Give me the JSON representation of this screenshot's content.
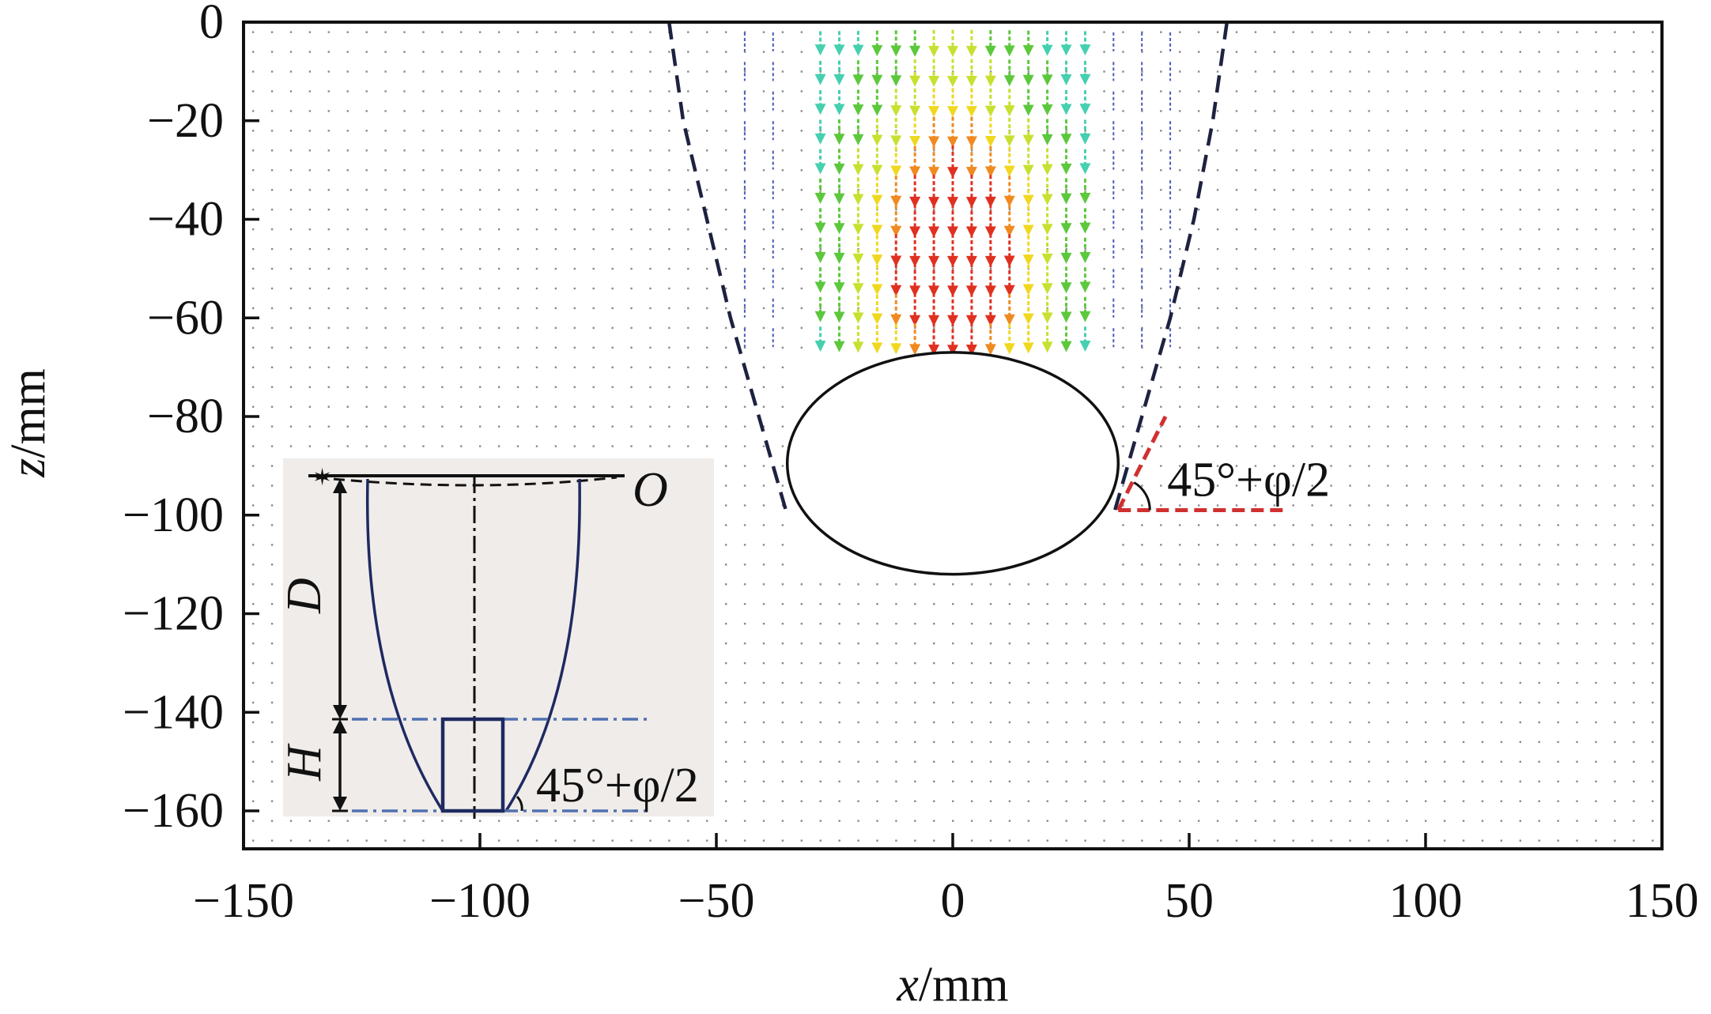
{
  "chart_data": {
    "type": "scatter",
    "subtype": "vector field (displacement arrows) with boundary curves",
    "xlabel_var": "x",
    "xlabel_unit": "/mm",
    "ylabel_var": "z",
    "ylabel_unit": "/mm",
    "xlim": [
      -150,
      150
    ],
    "ylim": [
      -168,
      0
    ],
    "x_ticks": [
      -150,
      -100,
      -50,
      0,
      50,
      100,
      150
    ],
    "x_tick_labels": [
      "−150",
      "−100",
      "−50",
      "0",
      "50",
      "100",
      "150"
    ],
    "y_ticks": [
      0,
      -20,
      -40,
      -60,
      -80,
      -100,
      -120,
      -140,
      -160
    ],
    "y_tick_labels": [
      "0",
      "−20",
      "−40",
      "−60",
      "−80",
      "−100",
      "−120",
      "−140",
      "−160"
    ],
    "grid": false,
    "structure": {
      "shape": "rounded rectangle",
      "x_range": [
        -35,
        35
      ],
      "z_range": [
        -112,
        -67
      ],
      "corner_radius_mm": 11
    },
    "boundary_curves": [
      {
        "style": "dashed",
        "color": "#1e2240",
        "points": [
          [
            -60,
            0
          ],
          [
            -57,
            -20
          ],
          [
            -52,
            -40
          ],
          [
            -47,
            -60
          ],
          [
            -41,
            -80
          ],
          [
            -35,
            -100
          ]
        ]
      },
      {
        "style": "dashed",
        "color": "#1e2240",
        "points": [
          [
            58,
            0
          ],
          [
            55,
            -20
          ],
          [
            51,
            -40
          ],
          [
            46,
            -60
          ],
          [
            40,
            -80
          ],
          [
            34,
            -100
          ]
        ]
      }
    ],
    "vector_field": {
      "description": "Downward displacement arrows above the structure, magnitude largest at center near z = -40 to -55, decaying to the sides",
      "columns_x": [
        -28,
        -24,
        -20,
        -16,
        -12,
        -8,
        -4,
        0,
        4,
        8,
        12,
        16,
        20,
        24,
        28
      ],
      "rows_z": [
        -4,
        -10,
        -16,
        -22,
        -28,
        -34,
        -40,
        -46,
        -52,
        -58,
        -64
      ],
      "colormap": [
        "#2a3cc8",
        "#3aa8e0",
        "#45d0b0",
        "#5cc83c",
        "#c8e030",
        "#f0d820",
        "#f08a20",
        "#e03020"
      ]
    },
    "angle_annotation": {
      "text": "45°+φ/2",
      "vertex": [
        35,
        -99
      ],
      "ray_end": [
        45,
        -80
      ],
      "horizontal_end": [
        70,
        -99
      ],
      "color": "#d03030"
    },
    "inset": {
      "background": "#efecea",
      "labels": {
        "origin": "O",
        "depth": "D",
        "height": "H",
        "angle": "45°+φ/2"
      }
    }
  }
}
